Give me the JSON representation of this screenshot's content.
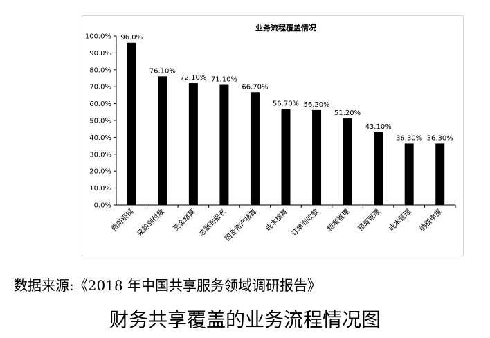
{
  "chart_data": {
    "type": "bar",
    "title": "业务流程覆盖情况",
    "categories": [
      "费用报销",
      "采购到付款",
      "资金结算",
      "总账到报表",
      "固定资产核算",
      "成本核算",
      "订单到收款",
      "档案管理",
      "预算管理",
      "成本管理",
      "纳税申报"
    ],
    "values": [
      96.0,
      76.1,
      72.1,
      71.1,
      66.7,
      56.7,
      56.2,
      51.2,
      43.1,
      36.3,
      36.3
    ],
    "value_labels": [
      "96.0%",
      "76.10%",
      "72.10%",
      "71.10%",
      "66.70%",
      "56.70%",
      "56.20%",
      "51.20%",
      "43.10%",
      "36.30%",
      "36.30%"
    ],
    "yticks": [
      "0.0%",
      "10.0%",
      "20.0%",
      "30.0%",
      "40.0%",
      "50.0%",
      "60.0%",
      "70.0%",
      "80.0%",
      "90.0%",
      "100.0%"
    ],
    "ylim": [
      0,
      100
    ],
    "grid": false,
    "legend": "none",
    "bar_color": "#000000"
  },
  "source_text": "数据来源:《2018 年中国共享服务领域调研报告》",
  "caption": "财务共享覆盖的业务流程情况图"
}
